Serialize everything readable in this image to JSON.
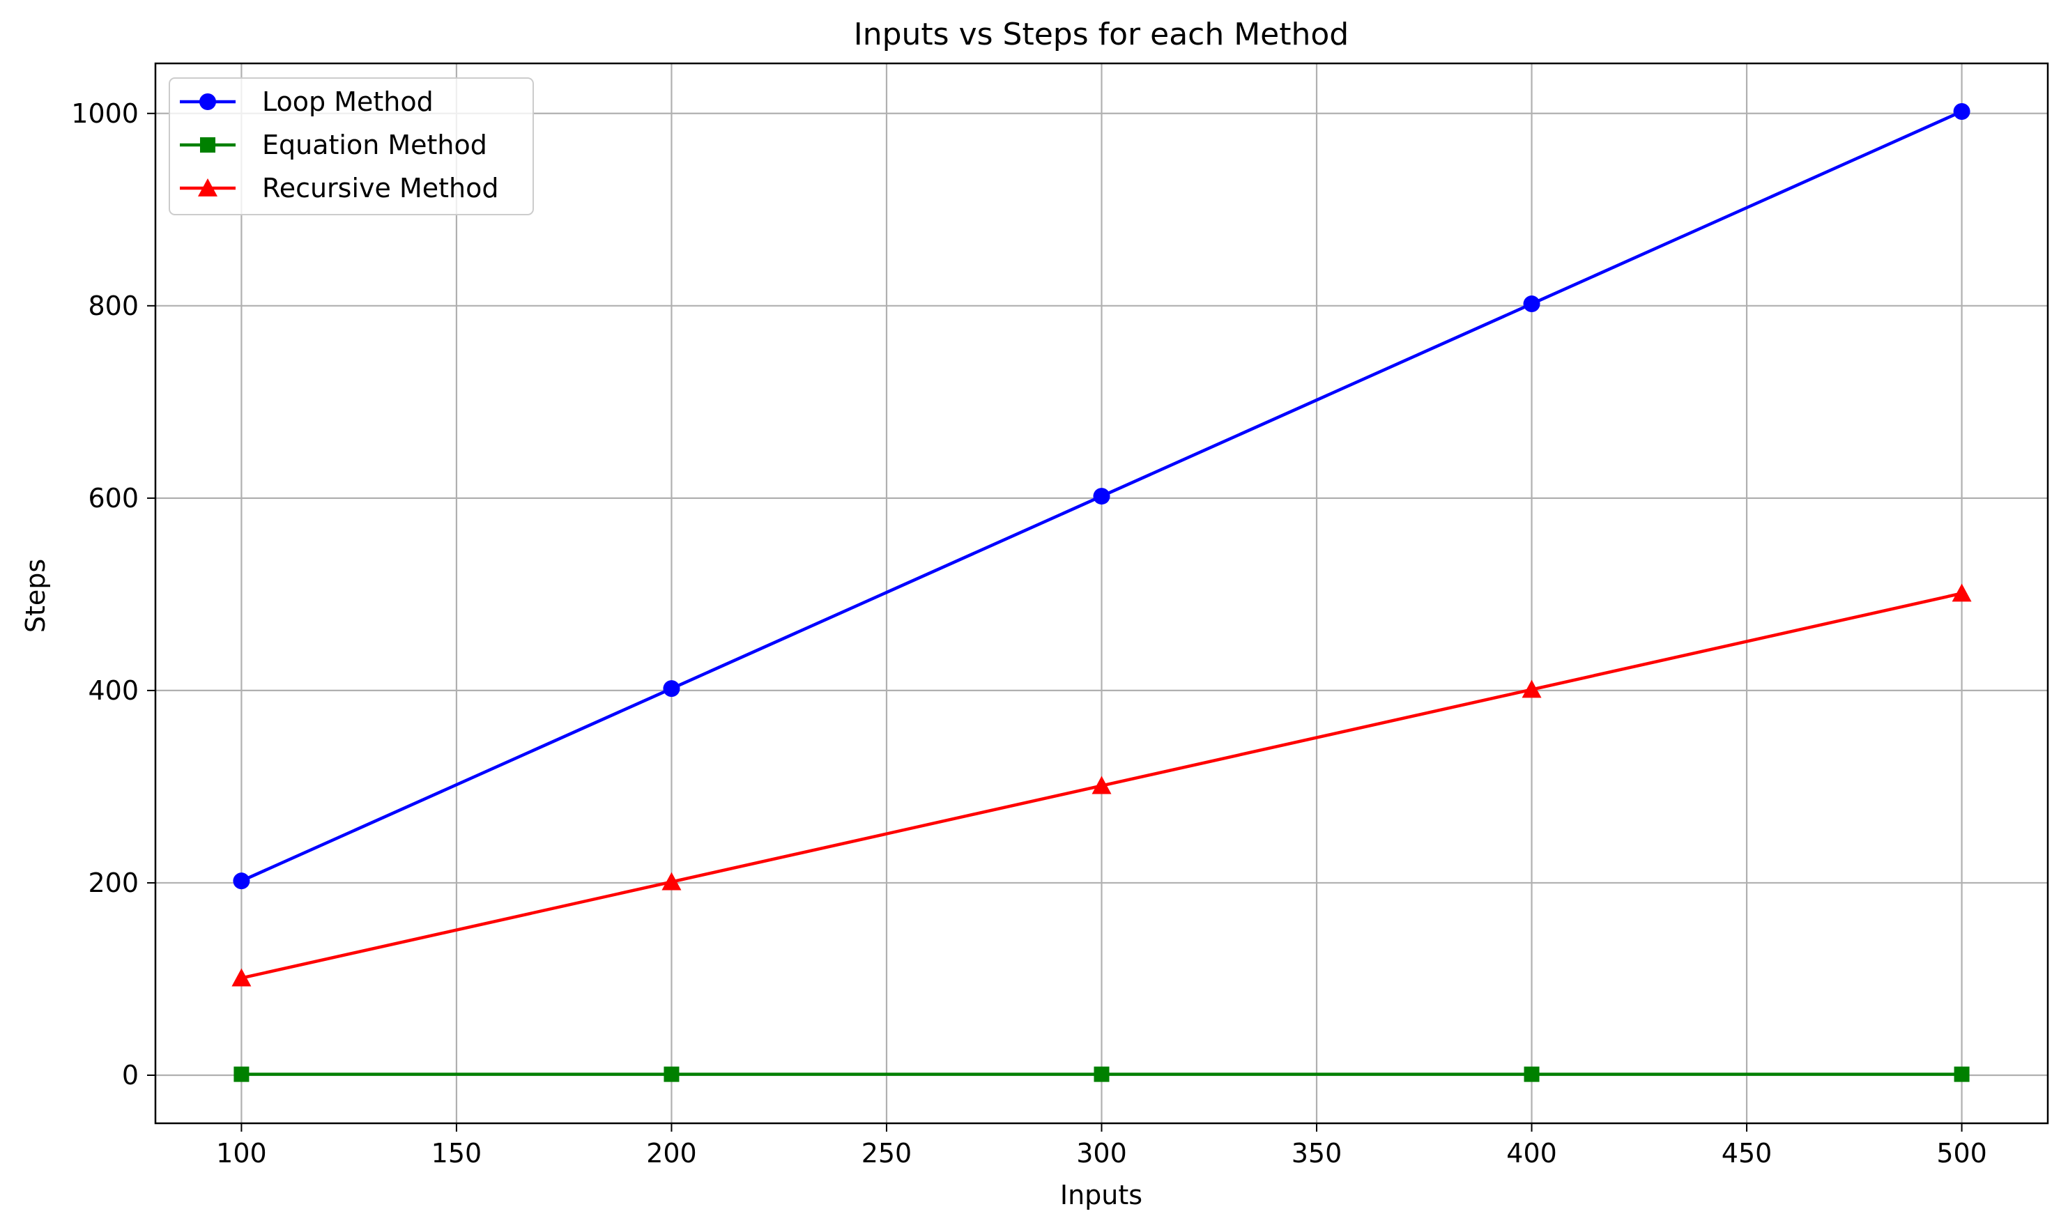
{
  "chart_data": {
    "type": "line",
    "title": "Inputs vs Steps for each Method",
    "xlabel": "Inputs",
    "ylabel": "Steps",
    "x": [
      100,
      200,
      300,
      400,
      500
    ],
    "xlim": [
      80,
      520
    ],
    "ylim": [
      -50,
      1052
    ],
    "xticks": [
      100,
      150,
      200,
      250,
      300,
      350,
      400,
      450,
      500
    ],
    "yticks": [
      0,
      200,
      400,
      600,
      800,
      1000
    ],
    "grid": true,
    "legend_position": "top-left",
    "series": [
      {
        "name": "Loop Method",
        "values": [
          202,
          402,
          602,
          802,
          1002
        ],
        "color": "#0000ff",
        "marker": "circle"
      },
      {
        "name": "Equation Method",
        "values": [
          1,
          1,
          1,
          1,
          1
        ],
        "color": "#008000",
        "marker": "square"
      },
      {
        "name": "Recursive Method",
        "values": [
          101,
          201,
          301,
          401,
          501
        ],
        "color": "#ff0000",
        "marker": "triangle"
      }
    ]
  }
}
